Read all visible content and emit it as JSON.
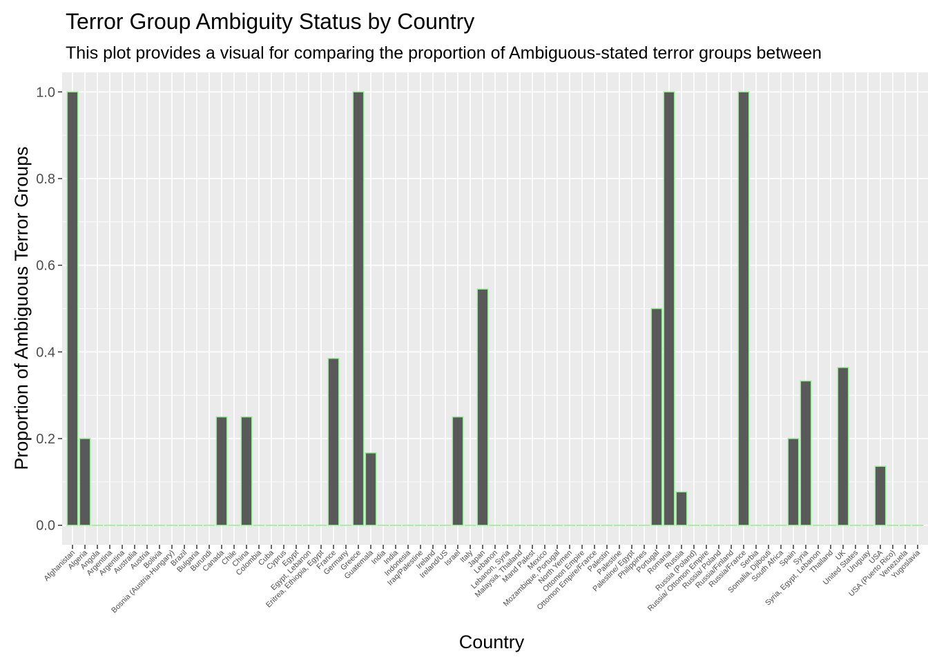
{
  "chart_data": {
    "type": "bar",
    "title": "Terror Group Ambiguity Status by Country",
    "subtitle": "This plot provides a visual for comparing the proportion of Ambiguous-stated terror groups between",
    "xlabel": "Country",
    "ylabel": "Proportion of Ambiguous Terror Groups",
    "ylim": [
      -0.045,
      1.045
    ],
    "yticks": [
      0.0,
      0.2,
      0.4,
      0.6,
      0.8,
      1.0
    ],
    "ytick_labels": [
      "0.0",
      "0.2",
      "0.4",
      "0.6",
      "0.8",
      "1.0"
    ],
    "grid": true,
    "legend": "none",
    "colors": {
      "panel_background": "#ebebeb",
      "grid": "#ffffff",
      "bar_fill": "#595959",
      "bar_outline": "#90ee90"
    },
    "categories": [
      "Afghanistan",
      "Algeria",
      "Angola",
      "Argentina",
      "Argentina",
      "Australia",
      "Austria",
      "Bolivia",
      "Bosnia (Austria-Hungary)",
      "Brazil",
      "Bulgaria",
      "Burundi",
      "Canada",
      "Chile",
      "China",
      "Colombia",
      "Cuba",
      "Cyprus",
      "Egypt",
      "Egypt, Lebanon",
      "Eritrea, Ethiopia, Egypt",
      "France",
      "Germany",
      "Greece",
      "Guatemala",
      "India",
      "India",
      "Indonesia",
      "Iraq/Palestine",
      "Ireland",
      "Ireland/US",
      "Israel",
      "Italy",
      "Japan",
      "Lebanon",
      "Lebanon, Syria",
      "Malaysia, Thailand",
      "Mand Palest",
      "Mexico",
      "Mozambique, Portugal",
      "North Yemen",
      "Ottomon Empire",
      "Ottomon Empire/France",
      "Palestin",
      "Palestine",
      "Palestine/ Egypt",
      "Philippines",
      "Portugal",
      "Romania",
      "Russia",
      "Russia (Poland)",
      "Russia/ Ottomon Empire",
      "Russia/ Poland",
      "Russia/Finland",
      "Russia/France",
      "Serbia",
      "Somalia, Djibouti",
      "South Africa",
      "Spain",
      "Syria",
      "Syria, Egypt, Lebanon",
      "Thailand",
      "UK",
      "United States",
      "Uruguay",
      "USA",
      "USA (Puerto Rico)",
      "Venezuela",
      "Yugoslavia"
    ],
    "values": [
      1.0,
      0.2,
      0,
      0,
      0,
      0,
      0,
      0,
      0,
      0,
      0,
      0,
      0.25,
      0,
      0.25,
      0,
      0,
      0,
      0,
      0,
      0,
      0.385,
      0,
      1.0,
      0.167,
      0,
      0,
      0,
      0,
      0,
      0,
      0.25,
      0,
      0.545,
      0,
      0,
      0,
      0,
      0,
      0,
      0,
      0,
      0,
      0,
      0,
      0,
      0,
      0.5,
      1.0,
      0.077,
      0,
      0,
      0,
      0,
      1.0,
      0,
      0,
      0,
      0.2,
      0.333,
      0,
      0,
      0.364,
      0,
      0,
      0.136,
      0,
      0,
      0
    ]
  }
}
